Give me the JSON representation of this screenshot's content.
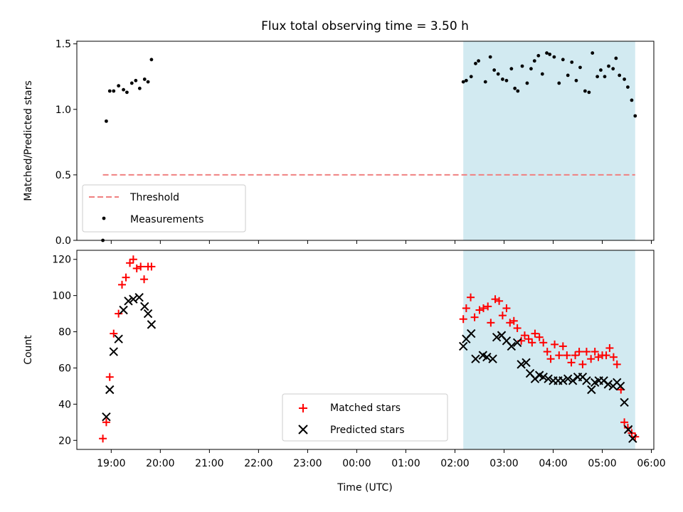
{
  "chart_data": [
    {
      "type": "scatter",
      "title": "Flux total observing time = 3.50 h",
      "xlabel": "",
      "ylabel": "Matched/Predicted stars",
      "ylim": [
        0,
        1.52
      ],
      "y_ticks": [
        "0.0",
        "0.5",
        "1.0",
        "1.5"
      ],
      "y_tick_values": [
        0,
        0.5,
        1.0,
        1.5
      ],
      "xlim": [
        -0.7,
        11.05
      ],
      "x_tick_values": [
        0,
        1,
        2,
        3,
        4,
        5,
        6,
        7,
        8,
        9,
        10,
        11
      ],
      "shaded_span": [
        7.17,
        10.67
      ],
      "shaded_color": "#add8e6",
      "legend_position": "lower-left",
      "legend": [
        "Threshold",
        "Measurements"
      ],
      "series": [
        {
          "name": "Threshold",
          "kind": "dashed-line",
          "color": "#f08080",
          "x": [
            -0.17,
            10.67
          ],
          "y": [
            0.5,
            0.5
          ]
        },
        {
          "name": "Measurements",
          "kind": "points",
          "color": "#000000",
          "x": [
            -0.17,
            -0.1,
            -0.03,
            0.05,
            0.15,
            0.25,
            0.32,
            0.42,
            0.5,
            0.58,
            0.68,
            0.75,
            0.82,
            7.17,
            7.23,
            7.33,
            7.42,
            7.48,
            7.62,
            7.72,
            7.8,
            7.88,
            7.97,
            8.05,
            8.15,
            8.22,
            8.28,
            8.37,
            8.47,
            8.55,
            8.62,
            8.7,
            8.78,
            8.87,
            8.93,
            9.02,
            9.12,
            9.2,
            9.3,
            9.38,
            9.47,
            9.55,
            9.65,
            9.73,
            9.8,
            9.9,
            9.97,
            10.05,
            10.13,
            10.22,
            10.28,
            10.35,
            10.45,
            10.52,
            10.6,
            10.67
          ],
          "y": [
            0.0,
            0.91,
            1.14,
            1.14,
            1.18,
            1.15,
            1.13,
            1.2,
            1.22,
            1.16,
            1.23,
            1.21,
            1.38,
            1.21,
            1.22,
            1.25,
            1.35,
            1.37,
            1.21,
            1.4,
            1.3,
            1.27,
            1.23,
            1.22,
            1.31,
            1.16,
            1.14,
            1.33,
            1.2,
            1.31,
            1.37,
            1.41,
            1.27,
            1.43,
            1.42,
            1.4,
            1.2,
            1.38,
            1.26,
            1.36,
            1.22,
            1.32,
            1.14,
            1.13,
            1.43,
            1.25,
            1.3,
            1.25,
            1.33,
            1.31,
            1.39,
            1.26,
            1.23,
            1.17,
            1.07,
            0.95
          ]
        }
      ]
    },
    {
      "type": "scatter",
      "xlabel": "Time (UTC)",
      "ylabel": "Count",
      "ylim": [
        15,
        125
      ],
      "y_ticks": [
        "20",
        "40",
        "60",
        "80",
        "100",
        "120"
      ],
      "y_tick_values": [
        20,
        40,
        60,
        80,
        100,
        120
      ],
      "xlim": [
        -0.7,
        11.05
      ],
      "x_tick_values": [
        0,
        1,
        2,
        3,
        4,
        5,
        6,
        7,
        8,
        9,
        10,
        11
      ],
      "x_ticks": [
        "19:00",
        "20:00",
        "21:00",
        "22:00",
        "23:00",
        "00:00",
        "01:00",
        "02:00",
        "03:00",
        "04:00",
        "05:00",
        "06:00"
      ],
      "shaded_span": [
        7.17,
        10.67
      ],
      "shaded_color": "#add8e6",
      "legend_position": "lower-center",
      "legend": [
        "Matched stars",
        "Predicted stars"
      ],
      "series": [
        {
          "name": "Matched stars",
          "marker": "+",
          "color": "#ff0000",
          "x": [
            -0.17,
            -0.1,
            -0.03,
            0.05,
            0.15,
            0.22,
            0.3,
            0.38,
            0.45,
            0.52,
            0.6,
            0.67,
            0.75,
            0.82,
            7.17,
            7.23,
            7.32,
            7.4,
            7.5,
            7.58,
            7.67,
            7.73,
            7.82,
            7.9,
            7.97,
            8.05,
            8.12,
            8.2,
            8.27,
            8.35,
            8.42,
            8.5,
            8.57,
            8.63,
            8.72,
            8.8,
            8.88,
            8.95,
            9.03,
            9.12,
            9.2,
            9.28,
            9.37,
            9.45,
            9.53,
            9.6,
            9.68,
            9.77,
            9.85,
            9.92,
            10.0,
            10.08,
            10.15,
            10.23,
            10.3,
            10.38,
            10.45,
            10.52,
            10.6,
            10.67
          ],
          "y": [
            21,
            30,
            55,
            79,
            90,
            106,
            110,
            118,
            120,
            115,
            116,
            109,
            116,
            116,
            87,
            93,
            99,
            88,
            92,
            93,
            94,
            85,
            98,
            97,
            89,
            93,
            85,
            86,
            82,
            75,
            78,
            76,
            74,
            79,
            77,
            74,
            69,
            65,
            73,
            67,
            72,
            67,
            63,
            67,
            69,
            62,
            69,
            65,
            69,
            66,
            67,
            67,
            71,
            66,
            62,
            48,
            30,
            27,
            24,
            22
          ]
        },
        {
          "name": "Predicted stars",
          "marker": "x",
          "color": "#000000",
          "x": [
            -0.1,
            -0.03,
            0.05,
            0.15,
            0.25,
            0.35,
            0.45,
            0.57,
            0.68,
            0.75,
            0.82,
            7.17,
            7.23,
            7.33,
            7.42,
            7.57,
            7.65,
            7.77,
            7.85,
            7.95,
            8.05,
            8.15,
            8.27,
            8.35,
            8.45,
            8.53,
            8.63,
            8.72,
            8.8,
            8.9,
            9.0,
            9.1,
            9.2,
            9.3,
            9.4,
            9.5,
            9.6,
            9.68,
            9.78,
            9.85,
            9.93,
            10.03,
            10.12,
            10.22,
            10.3,
            10.37,
            10.45,
            10.53,
            10.62
          ],
          "y": [
            33,
            48,
            69,
            76,
            92,
            97,
            98,
            99,
            94,
            90,
            84,
            72,
            76,
            79,
            65,
            67,
            66,
            65,
            77,
            78,
            75,
            72,
            74,
            62,
            63,
            57,
            54,
            56,
            55,
            54,
            53,
            53,
            53,
            54,
            53,
            55,
            55,
            53,
            48,
            52,
            53,
            53,
            51,
            50,
            52,
            50,
            41,
            26,
            21
          ]
        }
      ]
    }
  ]
}
